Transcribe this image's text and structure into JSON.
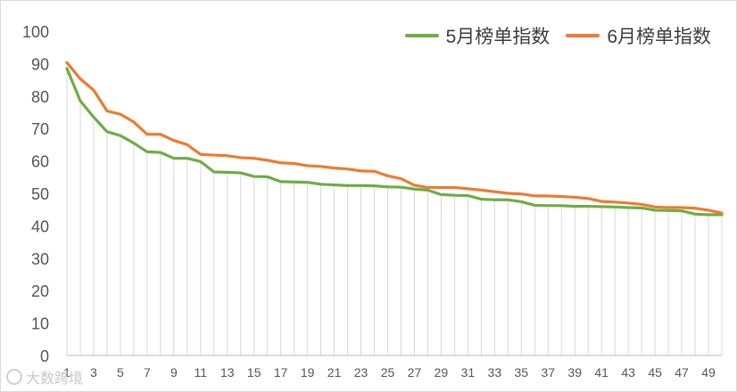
{
  "chart_data": {
    "type": "line",
    "title": "",
    "xlabel": "",
    "ylabel": "",
    "ylim": [
      0,
      100
    ],
    "yticks": [
      0,
      10,
      20,
      30,
      40,
      50,
      60,
      70,
      80,
      90,
      100
    ],
    "xticks": [
      1,
      3,
      5,
      7,
      9,
      11,
      13,
      15,
      17,
      19,
      21,
      23,
      25,
      27,
      29,
      31,
      33,
      35,
      37,
      39,
      41,
      43,
      45,
      47,
      49
    ],
    "x": [
      1,
      2,
      3,
      4,
      5,
      6,
      7,
      8,
      9,
      10,
      11,
      12,
      13,
      14,
      15,
      16,
      17,
      18,
      19,
      20,
      21,
      22,
      23,
      24,
      25,
      26,
      27,
      28,
      29,
      30,
      31,
      32,
      33,
      34,
      35,
      36,
      37,
      38,
      39,
      40,
      41,
      42,
      43,
      44,
      45,
      46,
      47,
      48,
      49,
      50
    ],
    "grid": "vertical",
    "legend_position": "top-right",
    "series": [
      {
        "name": "5月榜单指数",
        "color": "#70ad47",
        "values": [
          88.5,
          78.5,
          73.5,
          69,
          67.8,
          65.5,
          62.8,
          62.6,
          60.8,
          60.8,
          59.8,
          56.6,
          56.5,
          56.3,
          55.2,
          55.1,
          53.6,
          53.5,
          53.4,
          52.8,
          52.6,
          52.4,
          52.4,
          52.3,
          52.0,
          51.9,
          51.3,
          51.0,
          49.6,
          49.4,
          49.3,
          48.2,
          48.0,
          48.0,
          47.4,
          46.3,
          46.2,
          46.2,
          46.0,
          46.0,
          45.9,
          45.8,
          45.6,
          45.5,
          44.8,
          44.7,
          44.6,
          43.6,
          43.4,
          43.4
        ]
      },
      {
        "name": "6月榜单指数",
        "color": "#ed7d31",
        "values": [
          90.3,
          85.3,
          81.8,
          75.4,
          74.4,
          72.0,
          68.2,
          68.2,
          66.3,
          65.0,
          62.0,
          61.8,
          61.6,
          61.0,
          60.8,
          60.2,
          59.4,
          59.2,
          58.5,
          58.3,
          57.8,
          57.5,
          56.9,
          56.8,
          55.4,
          54.5,
          52.5,
          51.8,
          51.8,
          51.8,
          51.4,
          51.0,
          50.5,
          50.0,
          49.8,
          49.2,
          49.2,
          49.0,
          48.8,
          48.4,
          47.5,
          47.3,
          47.0,
          46.6,
          45.8,
          45.6,
          45.6,
          45.4,
          44.8,
          43.9
        ]
      }
    ]
  },
  "watermark": {
    "text": "大数跨境"
  }
}
